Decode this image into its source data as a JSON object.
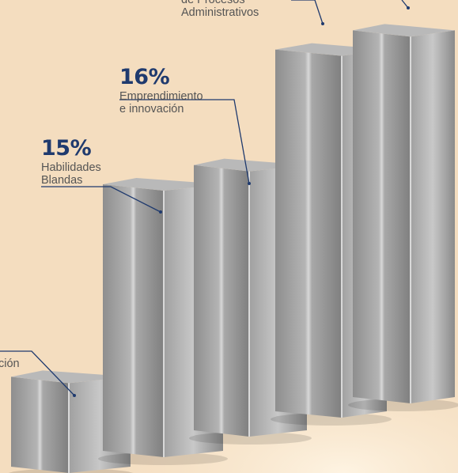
{
  "chart_data": {
    "type": "bar",
    "style": "3d-pillars",
    "title": "",
    "xlabel": "",
    "ylabel": "",
    "categories": [
      "",
      "",
      "",
      "",
      ""
    ],
    "labels": [
      {
        "percent": "",
        "lines": [
          "ción"
        ]
      },
      {
        "percent": "15%",
        "lines": [
          "Habilidades",
          "Blandas"
        ]
      },
      {
        "percent": "16%",
        "lines": [
          "Emprendimiento",
          "e innovación"
        ]
      },
      {
        "percent": "",
        "lines": [
          "de Procesos",
          "Administrativos"
        ]
      },
      {
        "percent": "",
        "lines": []
      }
    ],
    "values": [
      5,
      15,
      16,
      22,
      23
    ],
    "ylim": [
      0,
      24
    ],
    "grid": false,
    "legend": "none"
  },
  "colors": {
    "background": "#f4ddbf",
    "bar_face": "#9a9a9a",
    "bar_top": "#b9b9b9",
    "percent_text": "#1f3a6e",
    "label_text": "#555555",
    "connector": "#1f3a6e"
  }
}
